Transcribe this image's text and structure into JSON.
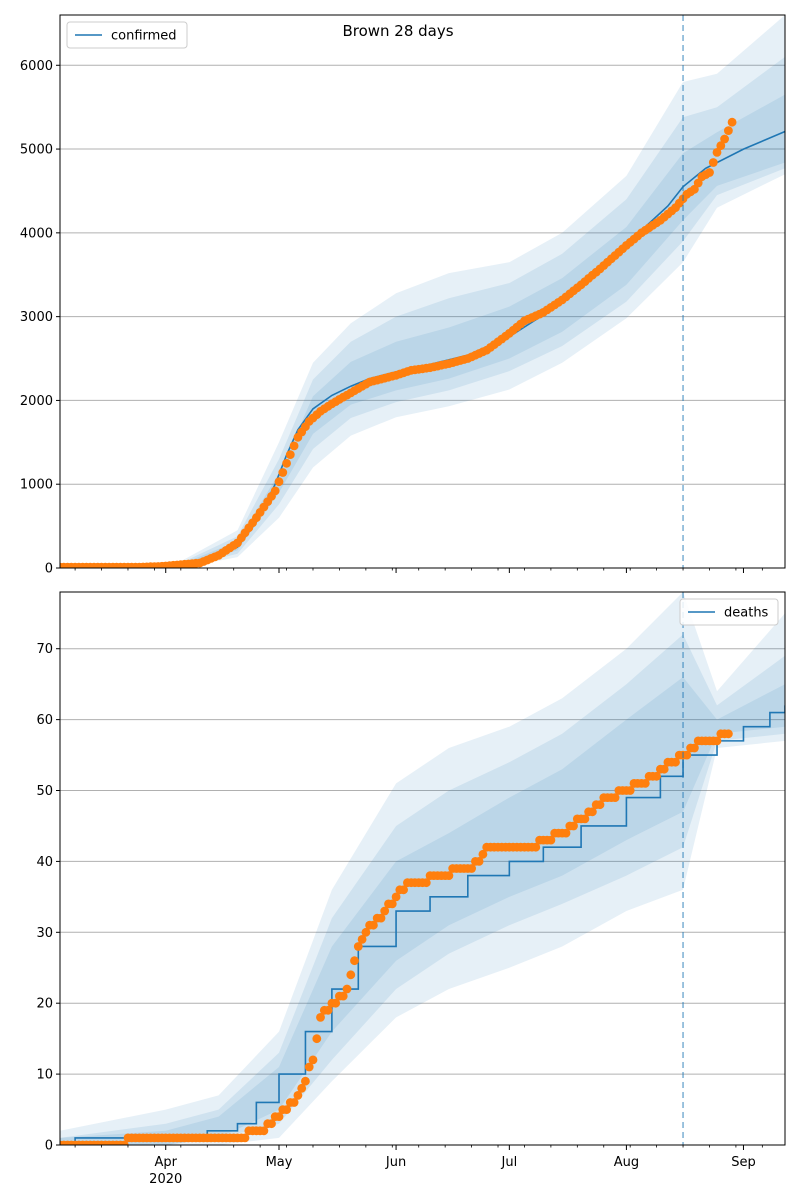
{
  "title": "Brown 28 days",
  "chart_data": [
    {
      "type": "line",
      "legend": "confirmed",
      "legend_position": "top-left",
      "ylim": [
        0,
        6600
      ],
      "yticks": [
        0,
        1000,
        2000,
        3000,
        4000,
        5000,
        6000
      ],
      "xlim": [
        "2020-03-04",
        "2020-09-12"
      ],
      "x_major_ticks": [
        {
          "date": "2020-04-01",
          "label": "Apr",
          "sublabel": "2020"
        },
        {
          "date": "2020-05-01",
          "label": "May"
        },
        {
          "date": "2020-06-01",
          "label": "Jun"
        },
        {
          "date": "2020-07-01",
          "label": "Jul"
        },
        {
          "date": "2020-08-01",
          "label": "Aug"
        },
        {
          "date": "2020-09-01",
          "label": "Sep"
        }
      ],
      "forecast_start": "2020-08-16",
      "grid": "horizontal",
      "colors": {
        "model": "#1f77b4",
        "observed": "#ff7f0e",
        "band": "#1f77b4"
      },
      "model_series": {
        "x": [
          "2020-03-04",
          "2020-03-20",
          "2020-03-28",
          "2020-04-05",
          "2020-04-12",
          "2020-04-20",
          "2020-04-25",
          "2020-04-30",
          "2020-05-03",
          "2020-05-06",
          "2020-05-10",
          "2020-05-15",
          "2020-05-20",
          "2020-05-25",
          "2020-06-01",
          "2020-06-10",
          "2020-06-20",
          "2020-07-01",
          "2020-07-10",
          "2020-07-20",
          "2020-07-28",
          "2020-08-05",
          "2020-08-12",
          "2020-08-16",
          "2020-08-22",
          "2020-09-01",
          "2020-09-12"
        ],
        "y": [
          0,
          0,
          5,
          30,
          80,
          250,
          550,
          1000,
          1350,
          1650,
          1900,
          2060,
          2170,
          2260,
          2340,
          2430,
          2540,
          2760,
          3020,
          3340,
          3680,
          4030,
          4320,
          4550,
          4770,
          5000,
          5210
        ]
      },
      "observed": {
        "x": [
          "2020-03-04",
          "2020-03-25",
          "2020-03-31",
          "2020-04-05",
          "2020-04-10",
          "2020-04-15",
          "2020-04-20",
          "2020-04-25",
          "2020-04-30",
          "2020-05-03",
          "2020-05-06",
          "2020-05-09",
          "2020-05-12",
          "2020-05-15",
          "2020-05-20",
          "2020-05-25",
          "2020-06-01",
          "2020-06-05",
          "2020-06-10",
          "2020-06-15",
          "2020-06-20",
          "2020-06-25",
          "2020-07-01",
          "2020-07-05",
          "2020-07-10",
          "2020-07-15",
          "2020-07-20",
          "2020-07-25",
          "2020-08-01",
          "2020-08-05",
          "2020-08-10",
          "2020-08-14",
          "2020-08-17",
          "2020-08-19",
          "2020-08-21",
          "2020-08-23",
          "2020-08-25",
          "2020-08-27",
          "2020-08-29"
        ],
        "y": [
          10,
          10,
          20,
          40,
          60,
          150,
          300,
          600,
          920,
          1250,
          1560,
          1750,
          1870,
          1960,
          2090,
          2220,
          2300,
          2360,
          2390,
          2440,
          2500,
          2600,
          2800,
          2950,
          3050,
          3200,
          3380,
          3570,
          3850,
          4000,
          4150,
          4300,
          4460,
          4520,
          4670,
          4720,
          4960,
          5120,
          5320
        ]
      },
      "bands": [
        {
          "x": [
            "2020-03-04",
            "2020-04-05",
            "2020-04-20",
            "2020-05-01",
            "2020-05-10",
            "2020-05-20",
            "2020-06-01",
            "2020-06-15",
            "2020-07-01",
            "2020-07-15",
            "2020-08-01",
            "2020-08-16",
            "2020-08-25",
            "2020-09-12"
          ],
          "lower": [
            0,
            0,
            130,
            600,
            1200,
            1580,
            1800,
            1930,
            2130,
            2450,
            2980,
            3650,
            4300,
            4700
          ],
          "upper": [
            0,
            80,
            450,
            1500,
            2450,
            2920,
            3280,
            3520,
            3650,
            4000,
            4680,
            5800,
            5900,
            6600
          ]
        },
        {
          "x": [
            "2020-03-04",
            "2020-04-05",
            "2020-04-20",
            "2020-05-01",
            "2020-05-10",
            "2020-05-20",
            "2020-06-01",
            "2020-06-15",
            "2020-07-01",
            "2020-07-15",
            "2020-08-01",
            "2020-08-16",
            "2020-08-25",
            "2020-09-12"
          ],
          "lower": [
            0,
            5,
            170,
            760,
            1420,
            1790,
            1980,
            2120,
            2350,
            2650,
            3180,
            3900,
            4450,
            4770
          ],
          "upper": [
            0,
            60,
            380,
            1300,
            2250,
            2700,
            3000,
            3220,
            3400,
            3750,
            4400,
            5380,
            5500,
            6100
          ]
        },
        {
          "x": [
            "2020-03-04",
            "2020-04-05",
            "2020-04-20",
            "2020-05-01",
            "2020-05-10",
            "2020-05-20",
            "2020-06-01",
            "2020-06-15",
            "2020-07-01",
            "2020-07-15",
            "2020-08-01",
            "2020-08-16",
            "2020-08-25",
            "2020-09-12"
          ],
          "lower": [
            0,
            15,
            210,
            900,
            1600,
            1950,
            2120,
            2260,
            2500,
            2820,
            3380,
            4150,
            4560,
            4840
          ],
          "upper": [
            0,
            45,
            320,
            1130,
            2050,
            2460,
            2700,
            2870,
            3120,
            3460,
            4070,
            4950,
            5200,
            5650
          ]
        }
      ]
    },
    {
      "type": "step",
      "legend": "deaths",
      "legend_position": "top-right",
      "ylim": [
        0,
        78
      ],
      "yticks": [
        0,
        10,
        20,
        30,
        40,
        50,
        60,
        70
      ],
      "xlim": [
        "2020-03-04",
        "2020-09-12"
      ],
      "x_major_ticks": [
        {
          "date": "2020-04-01",
          "label": "Apr",
          "sublabel": "2020"
        },
        {
          "date": "2020-05-01",
          "label": "May"
        },
        {
          "date": "2020-06-01",
          "label": "Jun"
        },
        {
          "date": "2020-07-01",
          "label": "Jul"
        },
        {
          "date": "2020-08-01",
          "label": "Aug"
        },
        {
          "date": "2020-09-01",
          "label": "Sep"
        }
      ],
      "forecast_start": "2020-08-16",
      "grid": "horizontal",
      "colors": {
        "model": "#1f77b4",
        "observed": "#ff7f0e",
        "band": "#1f77b4"
      },
      "model_series": {
        "x": [
          "2020-03-04",
          "2020-03-08",
          "2020-04-12",
          "2020-04-20",
          "2020-04-25",
          "2020-05-01",
          "2020-05-08",
          "2020-05-15",
          "2020-05-22",
          "2020-06-01",
          "2020-06-10",
          "2020-06-20",
          "2020-07-01",
          "2020-07-10",
          "2020-07-20",
          "2020-08-01",
          "2020-08-10",
          "2020-08-16",
          "2020-08-25",
          "2020-09-01",
          "2020-09-08",
          "2020-09-12"
        ],
        "y": [
          0,
          1,
          2,
          3,
          6,
          10,
          16,
          22,
          28,
          33,
          35,
          38,
          40,
          42,
          45,
          49,
          52,
          55,
          57,
          59,
          61,
          62
        ]
      },
      "observed": {
        "x": [
          "2020-03-04",
          "2020-04-09",
          "2020-04-20",
          "2020-04-26",
          "2020-04-29",
          "2020-05-02",
          "2020-05-05",
          "2020-05-08",
          "2020-05-10",
          "2020-05-12",
          "2020-05-16",
          "2020-05-19",
          "2020-05-21",
          "2020-05-23",
          "2020-05-25",
          "2020-05-28",
          "2020-06-01",
          "2020-06-04",
          "2020-06-07",
          "2020-06-12",
          "2020-06-20",
          "2020-06-23",
          "2020-06-25",
          "2020-07-01",
          "2020-07-08",
          "2020-07-10",
          "2020-07-16",
          "2020-07-20",
          "2020-07-23",
          "2020-07-27",
          "2020-08-01",
          "2020-08-05",
          "2020-08-09",
          "2020-08-13",
          "2020-08-17",
          "2020-08-19",
          "2020-08-20",
          "2020-08-24",
          "2020-08-28"
        ],
        "y": [
          0,
          1,
          1,
          2,
          3,
          5,
          6,
          9,
          12,
          18,
          20,
          22,
          26,
          29,
          31,
          32,
          35,
          37,
          37,
          38,
          39,
          40,
          42,
          42,
          42,
          43,
          44,
          46,
          47,
          49,
          50,
          51,
          52,
          54,
          55,
          56,
          57,
          57,
          58
        ]
      },
      "bands": [
        {
          "x": [
            "2020-03-04",
            "2020-04-01",
            "2020-04-15",
            "2020-05-01",
            "2020-05-15",
            "2020-06-01",
            "2020-06-15",
            "2020-07-01",
            "2020-07-15",
            "2020-08-01",
            "2020-08-16",
            "2020-08-25",
            "2020-09-12"
          ],
          "lower": [
            0,
            0,
            0,
            1,
            9,
            18,
            22,
            25,
            28,
            33,
            36,
            56,
            57
          ],
          "upper": [
            2,
            5,
            7,
            16,
            36,
            51,
            56,
            59,
            63,
            70,
            78,
            64,
            75
          ]
        },
        {
          "x": [
            "2020-03-04",
            "2020-04-01",
            "2020-04-15",
            "2020-05-01",
            "2020-05-15",
            "2020-06-01",
            "2020-06-15",
            "2020-07-01",
            "2020-07-15",
            "2020-08-01",
            "2020-08-16",
            "2020-08-25",
            "2020-09-12"
          ],
          "lower": [
            0,
            0,
            1,
            3,
            12,
            22,
            27,
            31,
            34,
            38,
            42,
            57,
            58
          ],
          "upper": [
            1,
            3,
            5,
            13,
            32,
            45,
            50,
            54,
            58,
            65,
            72,
            62,
            69
          ]
        },
        {
          "x": [
            "2020-03-04",
            "2020-04-01",
            "2020-04-15",
            "2020-05-01",
            "2020-05-15",
            "2020-06-01",
            "2020-06-15",
            "2020-07-01",
            "2020-07-15",
            "2020-08-01",
            "2020-08-16",
            "2020-08-25",
            "2020-09-12"
          ],
          "lower": [
            0,
            0,
            1,
            5,
            16,
            26,
            31,
            35,
            38,
            43,
            47,
            58,
            59
          ],
          "upper": [
            1,
            2,
            4,
            11,
            28,
            40,
            44,
            49,
            53,
            60,
            66,
            60,
            65
          ]
        }
      ]
    }
  ]
}
